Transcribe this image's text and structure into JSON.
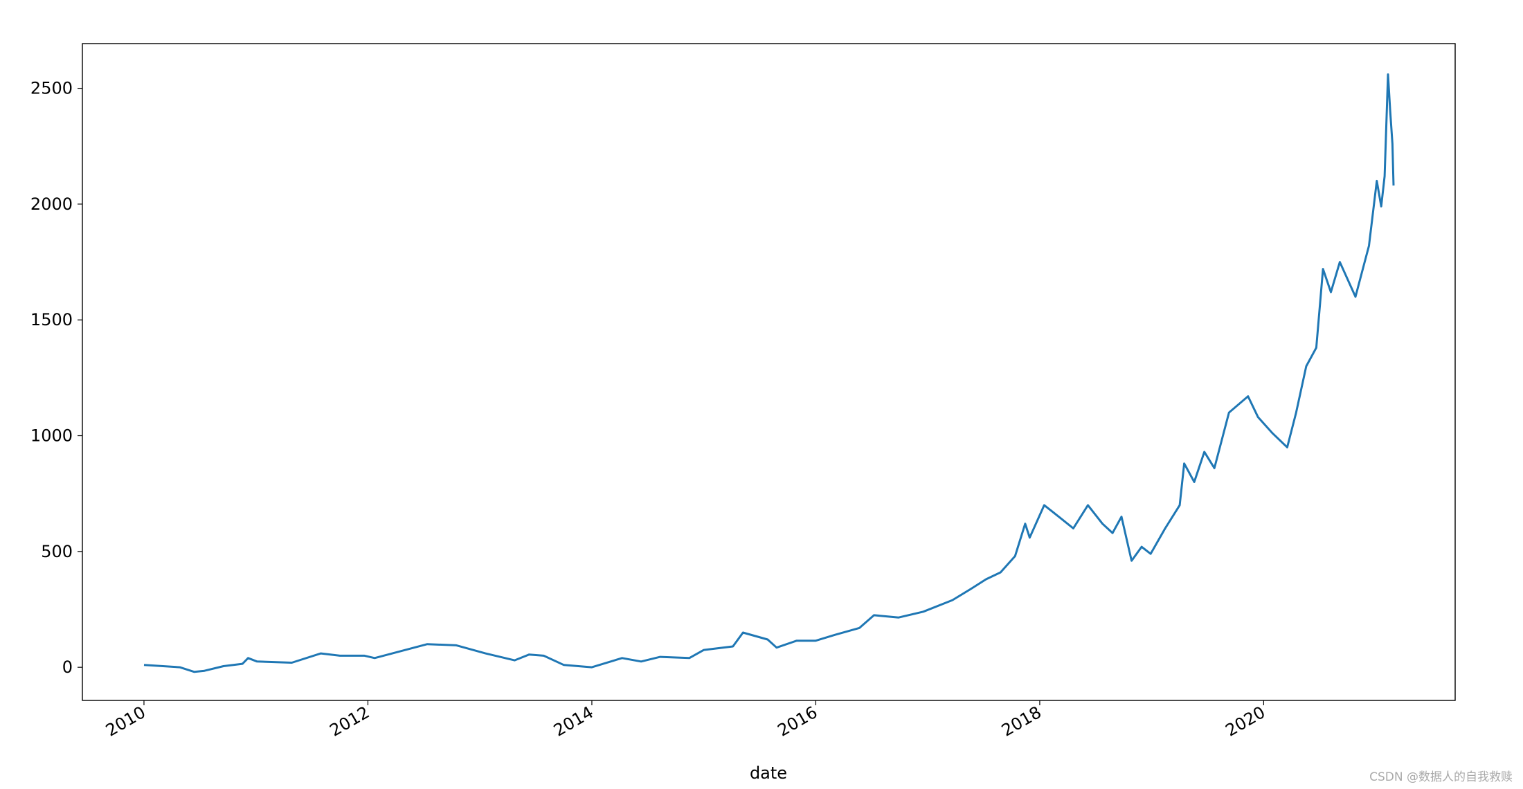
{
  "chart_data": {
    "type": "line",
    "xlabel": "date",
    "watermark": "CSDN @数据人的自我救赎",
    "color": "#1f77b4",
    "x": [
      2010.0,
      2010.32,
      2010.45,
      2010.54,
      2010.71,
      2010.88,
      2010.93,
      2011.01,
      2011.32,
      2011.58,
      2011.75,
      2011.97,
      2012.06,
      2012.53,
      2012.79,
      2013.05,
      2013.31,
      2013.44,
      2013.57,
      2013.75,
      2014.0,
      2014.27,
      2014.44,
      2014.61,
      2014.87,
      2015.0,
      2015.26,
      2015.35,
      2015.57,
      2015.65,
      2015.83,
      2016.0,
      2016.17,
      2016.39,
      2016.52,
      2016.74,
      2016.96,
      2017.22,
      2017.39,
      2017.52,
      2017.65,
      2017.78,
      2017.87,
      2017.91,
      2018.04,
      2018.17,
      2018.3,
      2018.43,
      2018.56,
      2018.65,
      2018.73,
      2018.82,
      2018.91,
      2018.99,
      2019.12,
      2019.25,
      2019.29,
      2019.38,
      2019.47,
      2019.56,
      2019.69,
      2019.86,
      2019.95,
      2020.08,
      2020.21,
      2020.29,
      2020.38,
      2020.47,
      2020.53,
      2020.6,
      2020.68,
      2020.82,
      2020.94,
      2021.01,
      2021.05,
      2021.08,
      2021.11,
      2021.13,
      2021.15,
      2021.16
    ],
    "values": [
      10,
      0,
      -20,
      -15,
      5,
      15,
      40,
      25,
      20,
      60,
      50,
      50,
      40,
      100,
      95,
      60,
      30,
      55,
      50,
      10,
      0,
      40,
      25,
      45,
      40,
      75,
      90,
      150,
      120,
      85,
      115,
      115,
      140,
      170,
      225,
      215,
      240,
      290,
      340,
      380,
      410,
      480,
      620,
      560,
      700,
      650,
      600,
      700,
      620,
      580,
      650,
      460,
      520,
      490,
      600,
      700,
      880,
      800,
      930,
      860,
      1100,
      1170,
      1080,
      1010,
      950,
      1100,
      1300,
      1380,
      1720,
      1620,
      1750,
      1600,
      1820,
      2100,
      1990,
      2120,
      2560,
      2400,
      2260,
      2080
    ],
    "xlim": [
      2009.45,
      2021.71
    ],
    "ylim": [
      -143,
      2693
    ],
    "xticks": [
      2010,
      2012,
      2014,
      2016,
      2018,
      2020
    ],
    "yticks": [
      0,
      500,
      1000,
      1500,
      2000,
      2500
    ]
  }
}
